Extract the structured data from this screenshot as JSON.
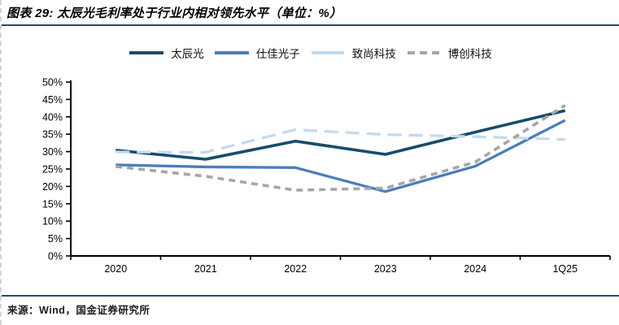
{
  "title": "图表 29: 太辰光毛利率处于行业内相对领先水平（单位：%）",
  "source": "来源：Wind，国金证券研究所",
  "colors": {
    "rule_navy": "#1d4f68",
    "axis": "#000000",
    "tick_label": "#000000"
  },
  "chart_data": {
    "type": "line",
    "title": "太辰光毛利率处于行业内相对领先水平",
    "unit": "%",
    "categories": [
      "2020",
      "2021",
      "2022",
      "2023",
      "2024",
      "1Q25"
    ],
    "series": [
      {
        "name": "太辰光",
        "values": [
          30.4,
          27.8,
          33.0,
          29.2,
          35.6,
          41.8
        ],
        "color": "#174c6b",
        "dash": null,
        "width": 3.6
      },
      {
        "name": "仕佳光子",
        "values": [
          26.2,
          25.6,
          25.4,
          18.5,
          25.8,
          39.0
        ],
        "color": "#4a7ebb",
        "dash": null,
        "width": 3.3
      },
      {
        "name": "致尚科技",
        "values": [
          29.9,
          29.8,
          36.3,
          34.9,
          34.3,
          33.5
        ],
        "color": "#c3daf0",
        "dash": "17 9",
        "width": 3.3
      },
      {
        "name": "博创科技",
        "values": [
          25.7,
          22.9,
          18.9,
          19.5,
          27.0,
          43.3
        ],
        "color": "#a6a6a6",
        "dash": "8 6",
        "width": 3.6
      }
    ],
    "ylim": [
      0,
      50
    ],
    "ytick_step": 5,
    "yticks": [
      "0%",
      "5%",
      "10%",
      "15%",
      "20%",
      "25%",
      "30%",
      "35%",
      "40%",
      "45%",
      "50%"
    ],
    "xlabel": "",
    "ylabel": "",
    "grid": false,
    "legend_position": "top"
  }
}
